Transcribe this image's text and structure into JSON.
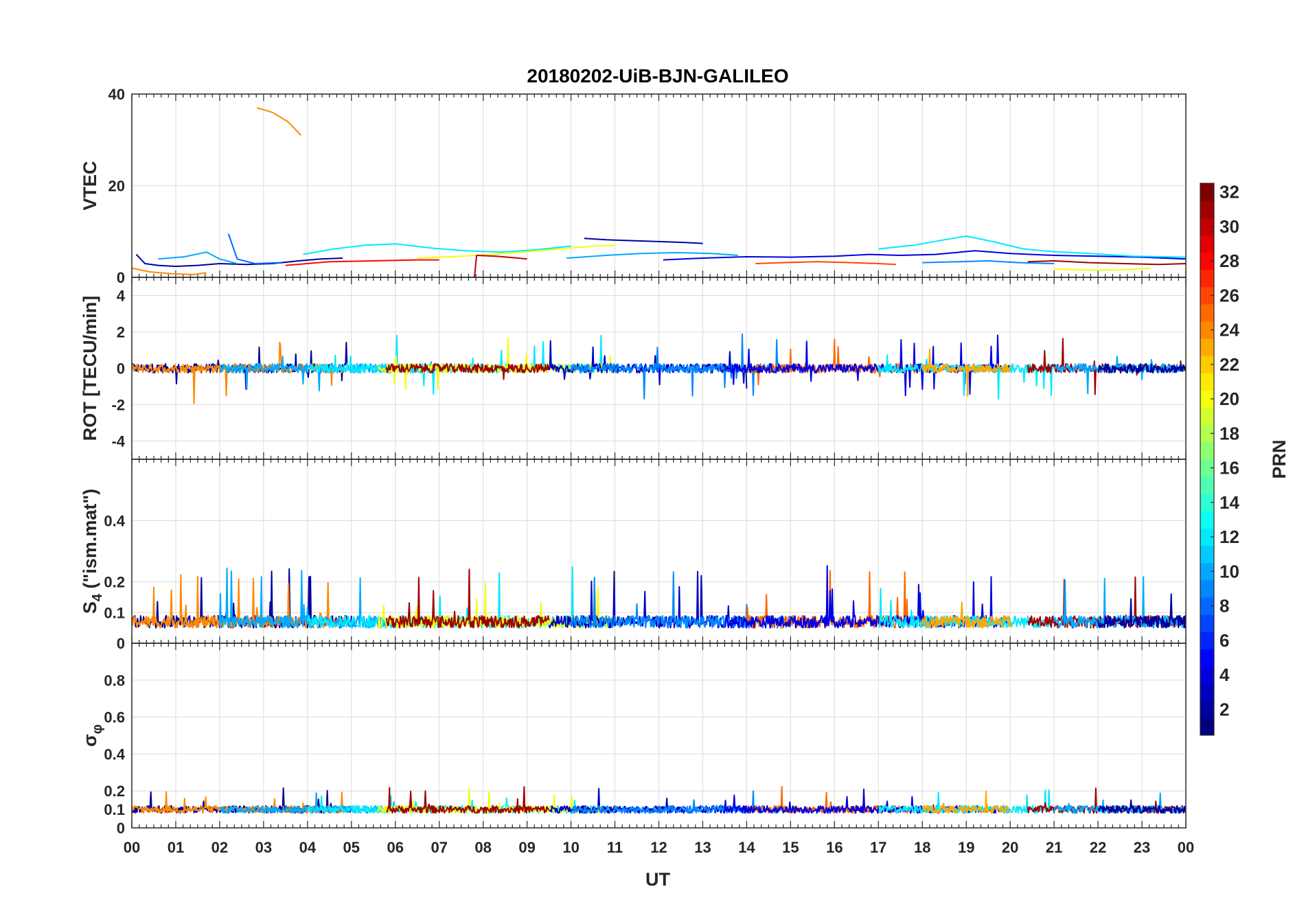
{
  "chart_data": {
    "type": "line",
    "title": "20180202-UiB-BJN-GALILEO",
    "xlabel": "UT",
    "x_ticks": [
      "00",
      "01",
      "02",
      "03",
      "04",
      "05",
      "06",
      "07",
      "08",
      "09",
      "10",
      "11",
      "12",
      "13",
      "14",
      "15",
      "16",
      "17",
      "18",
      "19",
      "20",
      "21",
      "22",
      "23",
      "00"
    ],
    "xlim": [
      0,
      24
    ],
    "grid": true,
    "colorbar": {
      "label": "PRN",
      "range": [
        1,
        32
      ],
      "ticks": [
        "2",
        "4",
        "6",
        "8",
        "10",
        "12",
        "14",
        "16",
        "18",
        "20",
        "22",
        "24",
        "26",
        "28",
        "30",
        "32"
      ],
      "colormap": "jet"
    },
    "panels": [
      {
        "ylabel": "VTEC",
        "ylim": [
          0,
          40
        ],
        "yticks": [
          "0",
          "20",
          "40"
        ],
        "series": [
          {
            "prn": 24,
            "x": [
              2.85,
              3.2,
              3.55,
              3.85
            ],
            "y": [
              37,
              36,
              34,
              31
            ]
          },
          {
            "prn": 24,
            "x": [
              0.0,
              0.4,
              0.9,
              1.4,
              1.7
            ],
            "y": [
              2,
              1.2,
              0.8,
              0.6,
              1.0
            ]
          },
          {
            "prn": 2,
            "x": [
              0.1,
              0.3,
              0.6,
              1.0,
              1.5,
              2.0,
              2.6,
              3.2,
              3.8,
              4.3,
              4.8
            ],
            "y": [
              5,
              3,
              2.6,
              2.4,
              2.6,
              3.0,
              2.8,
              3.0,
              3.6,
              4.0,
              4.2
            ]
          },
          {
            "prn": 10,
            "x": [
              0.6,
              1.2,
              1.7,
              2.0,
              2.4
            ],
            "y": [
              4,
              4.5,
              5.5,
              4,
              3
            ]
          },
          {
            "prn": 8,
            "x": [
              2.2,
              2.4,
              2.8,
              3.4
            ],
            "y": [
              9.5,
              4,
              3,
              3.2
            ]
          },
          {
            "prn": 12,
            "x": [
              3.9,
              4.6,
              5.3,
              6.0,
              6.8,
              7.6,
              8.4,
              9.2,
              10.0
            ],
            "y": [
              5,
              6.2,
              7.0,
              7.3,
              6.4,
              5.8,
              5.5,
              6.0,
              6.8
            ]
          },
          {
            "prn": 20,
            "x": [
              6.5,
              7.5,
              8.5,
              9.5,
              10.5,
              11.0
            ],
            "y": [
              4.2,
              4.6,
              5.2,
              6.0,
              6.8,
              7.0
            ]
          },
          {
            "prn": 28,
            "x": [
              3.5,
              4.5,
              5.5,
              6.5,
              7.0
            ],
            "y": [
              2.6,
              3.4,
              3.6,
              3.8,
              3.8
            ]
          },
          {
            "prn": 30,
            "x": [
              7.8,
              7.85,
              8.3,
              8.8,
              9.0
            ],
            "y": [
              0,
              4.8,
              4.6,
              4.2,
              4.0
            ]
          },
          {
            "prn": 2,
            "x": [
              10.3,
              10.8,
              11.4,
              12.0,
              12.6,
              13.0
            ],
            "y": [
              8.5,
              8.2,
              8.0,
              7.8,
              7.6,
              7.4
            ]
          },
          {
            "prn": 10,
            "x": [
              9.9,
              10.8,
              11.6,
              12.4,
              13.2,
              13.8
            ],
            "y": [
              4.2,
              4.8,
              5.2,
              5.4,
              5.2,
              4.8
            ]
          },
          {
            "prn": 4,
            "x": [
              12.1,
              13.0,
              14.0,
              15.0,
              16.0,
              16.8,
              17.5,
              18.3,
              19.2,
              20.0,
              21.0,
              22.0,
              23.0,
              24.0
            ],
            "y": [
              3.8,
              4.2,
              4.5,
              4.4,
              4.6,
              5.0,
              4.8,
              5.0,
              5.8,
              5.2,
              4.8,
              4.6,
              4.4,
              4.0
            ]
          },
          {
            "prn": 12,
            "x": [
              17.0,
              17.8,
              18.5,
              19.0,
              19.6,
              20.3,
              21.0,
              21.8,
              22.8,
              24.0
            ],
            "y": [
              6.2,
              7.0,
              8.2,
              9.0,
              7.8,
              6.2,
              5.6,
              5.2,
              4.6,
              4.4
            ]
          },
          {
            "prn": 26,
            "x": [
              14.2,
              14.8,
              15.6,
              16.4,
              17.0,
              17.4
            ],
            "y": [
              3.0,
              3.2,
              3.4,
              3.2,
              3.0,
              2.8
            ]
          },
          {
            "prn": 9,
            "x": [
              18.0,
              18.8,
              19.5,
              20.2,
              21.0
            ],
            "y": [
              3.2,
              3.4,
              3.6,
              3.2,
              3.0
            ]
          },
          {
            "prn": 31,
            "x": [
              20.4,
              21.0,
              21.8,
              22.6,
              23.4,
              24.0
            ],
            "y": [
              3.4,
              3.6,
              3.2,
              3.0,
              2.8,
              3.0
            ]
          },
          {
            "prn": 20,
            "x": [
              21.0,
              21.8,
              22.5,
              23.2
            ],
            "y": [
              1.8,
              1.6,
              1.6,
              2.0
            ]
          }
        ]
      },
      {
        "ylabel": "ROT [TECU/min]",
        "ylim": [
          -5,
          5
        ],
        "yticks": [
          "-4",
          "-2",
          "0",
          "2",
          "4"
        ]
      },
      {
        "ylabel": "S4 (\"ism.mat\")",
        "ylabel_main": "S",
        "ylabel_sub": "4",
        "ylabel_rest": " (\"ism.mat\")",
        "ylim": [
          0,
          0.6
        ],
        "yticks": [
          "0",
          "0.1",
          "0.2",
          "0.4"
        ]
      },
      {
        "ylabel": "σ φ",
        "ylabel_main": "σ",
        "ylabel_sub": "φ",
        "ylim": [
          0,
          1
        ],
        "yticks": [
          "0",
          "0.1",
          "0.2",
          "0.4",
          "0.6",
          "0.8"
        ]
      }
    ]
  }
}
